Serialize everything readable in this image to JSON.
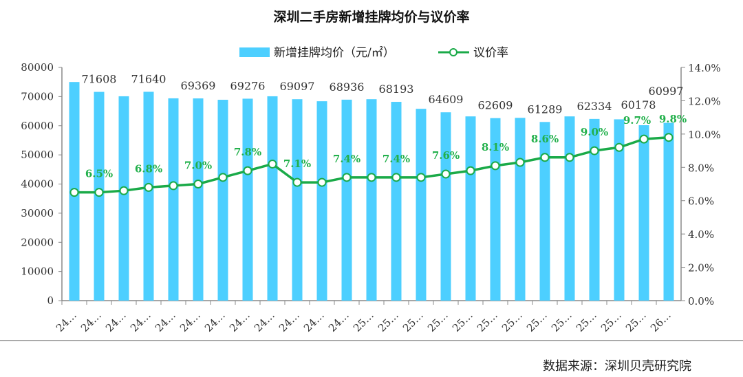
{
  "chart_data": {
    "type": "bar+line",
    "title": "深圳二手房新增挂牌均价与议价率",
    "categories": [
      "24…",
      "24…",
      "24…",
      "24…",
      "24…",
      "24…",
      "24…",
      "24…",
      "24…",
      "24…",
      "24…",
      "24…",
      "25…",
      "25…",
      "25…",
      "25…",
      "25…",
      "25…",
      "25…",
      "25…",
      "25…",
      "25…",
      "25…",
      "25…",
      "26…"
    ],
    "series": [
      {
        "name": "新增挂牌均价（元/㎡）",
        "type": "bar",
        "axis": "left",
        "color": "#4dcfff",
        "values": [
          75000,
          71608,
          70100,
          71640,
          69400,
          69369,
          68900,
          69276,
          70100,
          69097,
          68400,
          68936,
          69100,
          68193,
          65800,
          64609,
          63200,
          62609,
          62700,
          61289,
          63200,
          62334,
          62200,
          60178,
          60997
        ],
        "labels": [
          "",
          "71608",
          "",
          "71640",
          "",
          "69369",
          "",
          "69276",
          "",
          "69097",
          "",
          "68936",
          "",
          "68193",
          "",
          "64609",
          "",
          "62609",
          "",
          "61289",
          "",
          "62334",
          "",
          "60178",
          "60997"
        ]
      },
      {
        "name": "议价率",
        "type": "line",
        "axis": "right",
        "color": "#1aaa48",
        "values": [
          6.5,
          6.5,
          6.6,
          6.8,
          6.9,
          7.0,
          7.4,
          7.8,
          8.2,
          7.1,
          7.1,
          7.4,
          7.4,
          7.4,
          7.4,
          7.6,
          7.8,
          8.1,
          8.3,
          8.6,
          8.6,
          9.0,
          9.2,
          9.7,
          9.8
        ],
        "labels": [
          "",
          "6.5%",
          "",
          "6.8%",
          "",
          "7.0%",
          "",
          "7.8%",
          "",
          "7.1%",
          "",
          "7.4%",
          "",
          "7.4%",
          "",
          "7.6%",
          "",
          "8.1%",
          "",
          "8.6%",
          "",
          "9.0%",
          "",
          "9.7%",
          "9.8%"
        ]
      }
    ],
    "y_left": {
      "range": [
        0,
        80000
      ],
      "ticks": [
        "0",
        "10000",
        "20000",
        "30000",
        "40000",
        "50000",
        "60000",
        "70000",
        "80000"
      ]
    },
    "y_right": {
      "range": [
        0,
        14
      ],
      "ticks": [
        "0.0%",
        "2.0%",
        "4.0%",
        "6.0%",
        "8.0%",
        "10.0%",
        "12.0%",
        "14.0%"
      ]
    },
    "grid": false,
    "legend_placement": "top-center",
    "source": "数据来源：深圳贝壳研究院"
  }
}
